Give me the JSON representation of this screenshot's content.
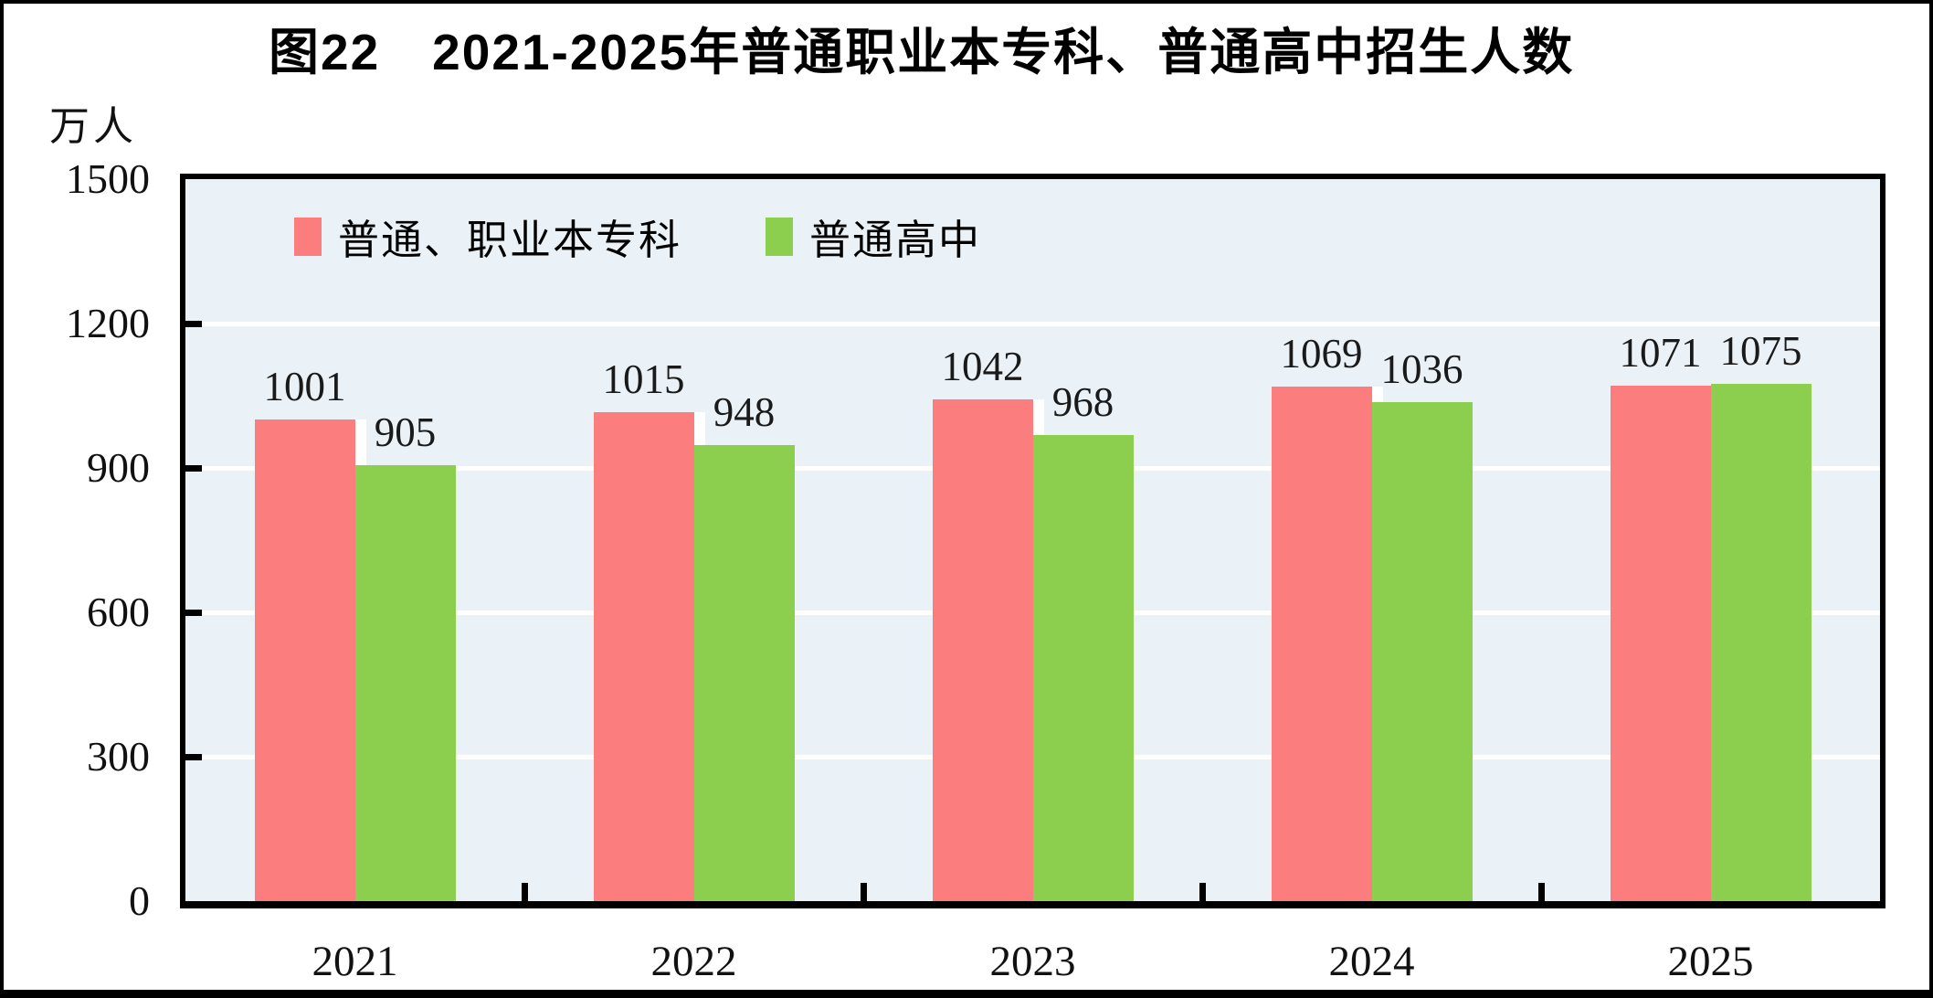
{
  "figure": {
    "title": "图22　2021-2025年普通职业本专科、普通高中招生人数",
    "unit_label": "万人"
  },
  "chart_data": {
    "type": "bar",
    "title": "图22　2021-2025年普通职业本专科、普通高中招生人数",
    "unit": "万人",
    "categories": [
      "2021",
      "2022",
      "2023",
      "2024",
      "2025"
    ],
    "series": [
      {
        "name": "普通、职业本专科",
        "color": "#fb7d7d",
        "values": [
          1001,
          1015,
          1042,
          1069,
          1071
        ]
      },
      {
        "name": "普通高中",
        "color": "#8ccf4e",
        "values": [
          905,
          948,
          968,
          1036,
          1075
        ]
      }
    ],
    "ylabel": "万人",
    "ylim": [
      0,
      1500
    ],
    "yticks": [
      0,
      300,
      600,
      900,
      1200,
      1500
    ],
    "grid": true,
    "gridline_color": "#ffffff",
    "plot_bg_color": "#eaf2f7",
    "axis_color": "#000000",
    "bar_gap_stripe_color": "#ffffff",
    "legend_position": "top-inside",
    "value_labels": true
  }
}
